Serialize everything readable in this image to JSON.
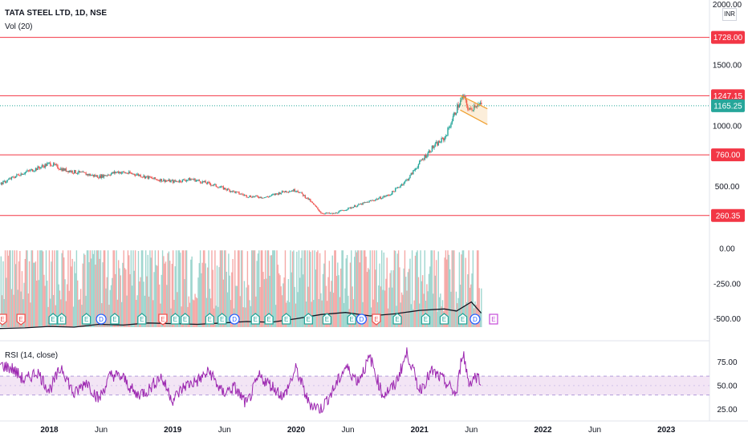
{
  "header": {
    "title": "TATA STEEL LTD, 1D, NSE",
    "volume_label": "Vol (20)",
    "rsi_label": "RSI (14, close)",
    "currency": "INR"
  },
  "chart_data": {
    "type": "line",
    "symbol": "TATA STEEL LTD",
    "interval": "1D",
    "exchange": "NSE",
    "price_axis": {
      "ticks": [
        "2000.00",
        "1500.00",
        "1000.00",
        "500.00"
      ],
      "tick_values": [
        2000,
        1500,
        1000,
        500
      ],
      "range": [
        120,
        2010
      ]
    },
    "horizontal_levels": [
      {
        "value": 1728.0,
        "label": "1728.00",
        "color": "#f23645"
      },
      {
        "value": 1247.15,
        "label": "1247.15",
        "color": "#f23645"
      },
      {
        "value": 760.0,
        "label": "760.00",
        "color": "#f23645"
      },
      {
        "value": 260.35,
        "label": "260.35",
        "color": "#f23645"
      }
    ],
    "last_price": {
      "value": 1165.25,
      "label": "1165.25",
      "color": "#26a69a"
    },
    "price_series": {
      "name": "Close",
      "x": [
        2017.6,
        2017.75,
        2017.9,
        2018.0,
        2018.1,
        2018.25,
        2018.4,
        2018.55,
        2018.7,
        2018.85,
        2019.0,
        2019.15,
        2019.3,
        2019.45,
        2019.6,
        2019.75,
        2019.9,
        2020.0,
        2020.1,
        2020.2,
        2020.3,
        2020.45,
        2020.6,
        2020.75,
        2020.9,
        2021.0,
        2021.1,
        2021.2,
        2021.3,
        2021.35,
        2021.4,
        2021.45,
        2021.5
      ],
      "y": [
        520,
        600,
        650,
        690,
        640,
        610,
        580,
        620,
        600,
        560,
        540,
        560,
        520,
        470,
        420,
        410,
        460,
        470,
        390,
        280,
        275,
        330,
        380,
        430,
        560,
        700,
        820,
        900,
        1150,
        1240,
        1120,
        1180,
        1165
      ]
    },
    "channel": {
      "x": [
        2021.33,
        2021.55
      ],
      "upper": [
        1250,
        1140
      ],
      "lower": [
        1130,
        1010
      ],
      "color": "#f0a030"
    },
    "volume_axis": {
      "ticks": [
        "0.00",
        "-250.00",
        "-500.00"
      ],
      "tick_values": [
        0,
        -250,
        -500
      ],
      "range": [
        -560,
        30
      ]
    },
    "volume_ma": {
      "x": [
        2017.6,
        2017.8,
        2018.0,
        2018.2,
        2018.4,
        2018.6,
        2018.8,
        2019.0,
        2019.2,
        2019.4,
        2019.6,
        2019.8,
        2020.0,
        2020.2,
        2020.4,
        2020.6,
        2020.8,
        2021.0,
        2021.2,
        2021.3,
        2021.42,
        2021.5
      ],
      "y": [
        -570,
        -565,
        -555,
        -560,
        -540,
        -545,
        -530,
        -535,
        -540,
        -530,
        -520,
        -525,
        -500,
        -470,
        -455,
        -480,
        -465,
        -440,
        -430,
        -445,
        -380,
        -460
      ]
    },
    "earnings_markers": {
      "label_e": "E",
      "label_d": "D",
      "x": [
        2017.62,
        2017.77,
        2018.03,
        2018.1,
        2018.3,
        2018.42,
        2018.53,
        2018.75,
        2018.92,
        2019.02,
        2019.1,
        2019.3,
        2019.4,
        2019.5,
        2019.67,
        2019.78,
        2019.92,
        2020.1,
        2020.25,
        2020.45,
        2020.53,
        2020.65,
        2020.82,
        2021.05,
        2021.2,
        2021.35,
        2021.45,
        2021.6
      ],
      "kind": [
        "down",
        "down",
        "up",
        "up",
        "up",
        "down-dividend",
        "up",
        "up",
        "down",
        "up",
        "up",
        "up",
        "up",
        "down-dividend",
        "up",
        "up",
        "up",
        "up",
        "up",
        "up",
        "down-dividend",
        "down",
        "up",
        "up",
        "up",
        "up",
        "down-dividend",
        "future"
      ]
    },
    "rsi_axis": {
      "ticks": [
        "75.00",
        "50.00",
        "25.00"
      ],
      "tick_values": [
        75,
        50,
        25
      ],
      "range": [
        15,
        95
      ],
      "band": [
        40,
        60
      ]
    },
    "rsi_series": {
      "x": [
        2017.6,
        2017.7,
        2017.8,
        2017.9,
        2018.0,
        2018.1,
        2018.2,
        2018.3,
        2018.4,
        2018.5,
        2018.6,
        2018.7,
        2018.8,
        2018.9,
        2019.0,
        2019.1,
        2019.2,
        2019.3,
        2019.4,
        2019.5,
        2019.6,
        2019.7,
        2019.8,
        2019.9,
        2020.0,
        2020.1,
        2020.2,
        2020.3,
        2020.4,
        2020.5,
        2020.6,
        2020.7,
        2020.8,
        2020.9,
        2021.0,
        2021.1,
        2021.2,
        2021.3,
        2021.35,
        2021.4,
        2021.45,
        2021.5
      ],
      "y": [
        72,
        68,
        55,
        65,
        45,
        70,
        40,
        55,
        35,
        62,
        58,
        40,
        45,
        60,
        35,
        50,
        55,
        65,
        42,
        48,
        30,
        60,
        50,
        38,
        68,
        32,
        25,
        45,
        70,
        55,
        80,
        40,
        50,
        85,
        45,
        65,
        55,
        40,
        88,
        52,
        60,
        57
      ]
    },
    "time_axis": {
      "labels": [
        "2018",
        "Jun",
        "2019",
        "Jun",
        "2020",
        "Jun",
        "2021",
        "Jun",
        "2022",
        "Jun",
        "2023"
      ],
      "values": [
        2018.0,
        2018.42,
        2019.0,
        2019.42,
        2020.0,
        2020.42,
        2021.0,
        2021.42,
        2022.0,
        2022.42,
        2023.0
      ],
      "range": [
        2017.6,
        2023.35
      ]
    },
    "colors": {
      "up": "#26a69a",
      "down": "#ef5350",
      "ma": "#131722",
      "rsi": "#9c27b0",
      "rsi_band": "#f3e5f5",
      "dividend": "#2962ff"
    }
  }
}
